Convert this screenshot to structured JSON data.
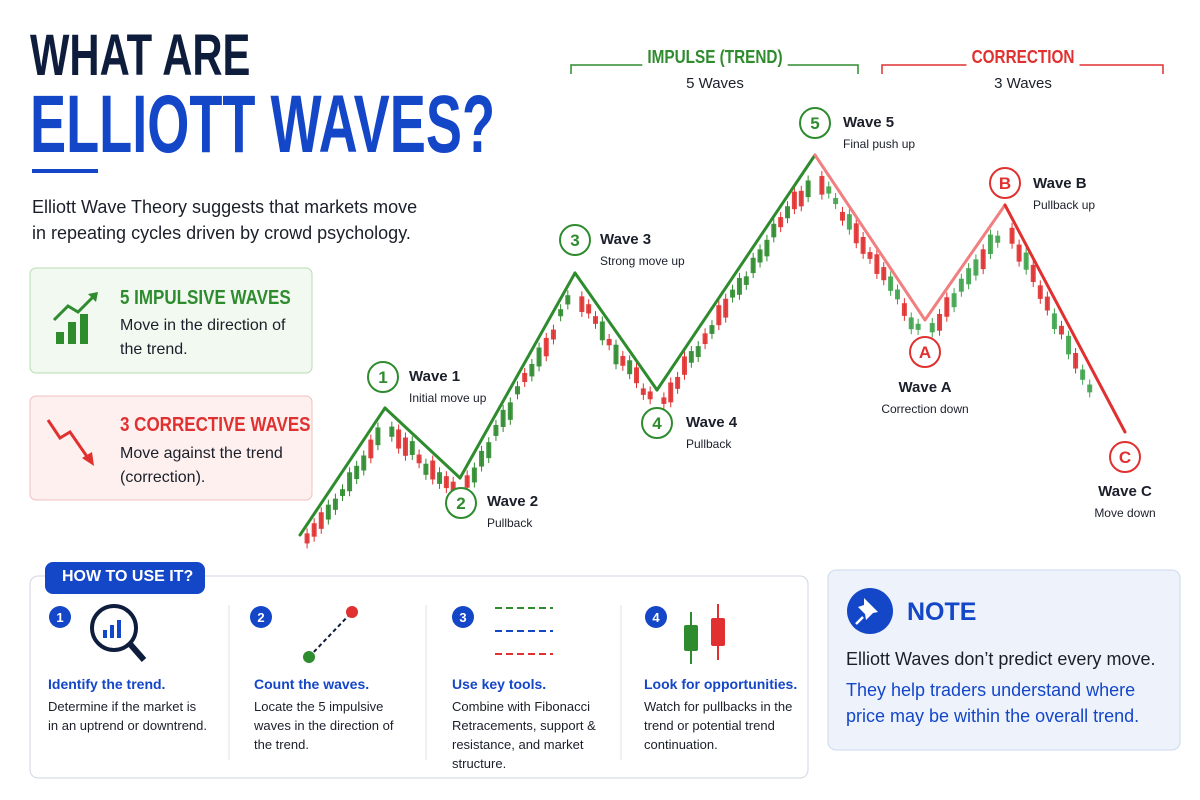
{
  "header": {
    "title_line1": "WHAT ARE",
    "title_line2": "ELLIOTT WAVES?",
    "intro": "Elliott Wave Theory suggests that markets move in repeating cycles driven by crowd psychology."
  },
  "cards": [
    {
      "title": "5 IMPULSIVE WAVES",
      "text": "Move in the direction of the trend."
    },
    {
      "title": "3 CORRECTIVE WAVES",
      "text": "Move against the trend (correction)."
    }
  ],
  "phases": [
    {
      "title": "IMPULSE (TREND)",
      "subtitle": "5 Waves"
    },
    {
      "title": "CORRECTION",
      "subtitle": "3 Waves"
    }
  ],
  "waves": [
    {
      "marker": "1",
      "label": "Wave 1",
      "desc": "Initial move up"
    },
    {
      "marker": "2",
      "label": "Wave 2",
      "desc": "Pullback"
    },
    {
      "marker": "3",
      "label": "Wave 3",
      "desc": "Strong move up"
    },
    {
      "marker": "4",
      "label": "Wave 4",
      "desc": "Pullback"
    },
    {
      "marker": "5",
      "label": "Wave 5",
      "desc": "Final push up"
    },
    {
      "marker": "A",
      "label": "Wave A",
      "desc": "Correction down"
    },
    {
      "marker": "B",
      "label": "Wave B",
      "desc": "Pullback up"
    },
    {
      "marker": "C",
      "label": "Wave C",
      "desc": "Move down"
    }
  ],
  "howto": {
    "title": "HOW TO USE IT?",
    "steps": [
      {
        "number": "1",
        "title": "Identify the trend.",
        "text": "Determine if the market is in an uptrend or downtrend."
      },
      {
        "number": "2",
        "title": "Count the waves.",
        "text": "Locate the 5 impulsive waves in the direction of the trend."
      },
      {
        "number": "3",
        "title": "Use key tools.",
        "text": "Combine with Fibonacci Retracements, support & resistance, and market structure."
      },
      {
        "number": "4",
        "title": "Look for opportunities.",
        "text": "Watch for pullbacks in the trend or potential trend continuation."
      }
    ]
  },
  "note": {
    "title": "NOTE",
    "text": "Elliott Waves don’t predict every move.",
    "highlight": "They help traders understand where price may be within the overall trend."
  }
}
